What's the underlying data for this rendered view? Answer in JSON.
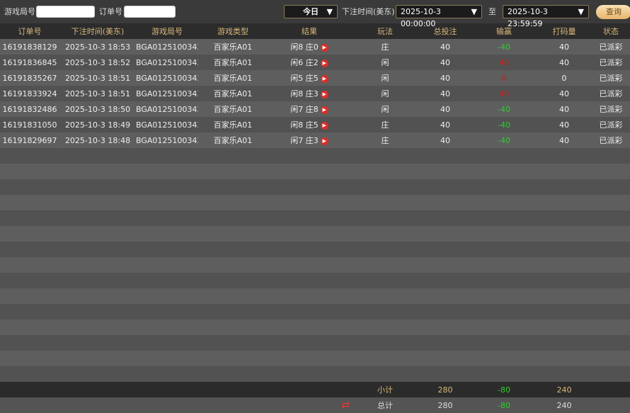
{
  "filters": {
    "game_round_label": "游戏局号",
    "game_round_value": "",
    "order_label": "订单号",
    "order_value": "",
    "period": "今日",
    "time_label": "下注时间(美东)",
    "start": "2025-10-3 00:00:00",
    "to_label": "至",
    "end": "2025-10-3 23:59:59",
    "query": "查询"
  },
  "columns": [
    "订单号",
    "下注时间(美东)",
    "游戏局号",
    "游戏类型",
    "结果",
    "玩法",
    "总投注",
    "输赢",
    "打码量",
    "状态"
  ],
  "rows": [
    [
      "16191838129",
      "2025-10-3 18:53",
      "BGA0125100343E",
      "百家乐A01",
      "闲8 庄0",
      "庄",
      "40",
      "-40",
      "40",
      "已派彩"
    ],
    [
      "16191836845",
      "2025-10-3 18:52",
      "BGA0125100343D",
      "百家乐A01",
      "闲6 庄2",
      "闲",
      "40",
      "40",
      "40",
      "已派彩"
    ],
    [
      "16191835267",
      "2025-10-3 18:51",
      "BGA0125100343C",
      "百家乐A01",
      "闲5 庄5",
      "闲",
      "40",
      "0",
      "0",
      "已派彩"
    ],
    [
      "16191833924",
      "2025-10-3 18:51",
      "BGA0125100343B",
      "百家乐A01",
      "闲8 庄3",
      "闲",
      "40",
      "40",
      "40",
      "已派彩"
    ],
    [
      "16191832486",
      "2025-10-3 18:50",
      "BGA0125100343A",
      "百家乐A01",
      "闲7 庄8",
      "闲",
      "40",
      "-40",
      "40",
      "已派彩"
    ],
    [
      "16191831050",
      "2025-10-3 18:49",
      "BGA01251003439",
      "百家乐A01",
      "闲8 庄5",
      "庄",
      "40",
      "-40",
      "40",
      "已派彩"
    ],
    [
      "16191829697",
      "2025-10-3 18:48",
      "BGA01251003438",
      "百家乐A01",
      "闲7 庄3",
      "庄",
      "40",
      "-40",
      "40",
      "已派彩"
    ]
  ],
  "win_colors": [
    "g",
    "r",
    "r",
    "r",
    "g",
    "g",
    "g"
  ],
  "subtotal": {
    "label": "小计",
    "bet": "280",
    "win": "-80",
    "code": "240"
  },
  "total": {
    "label": "总计",
    "bet": "280",
    "win": "-80",
    "code": "240"
  }
}
